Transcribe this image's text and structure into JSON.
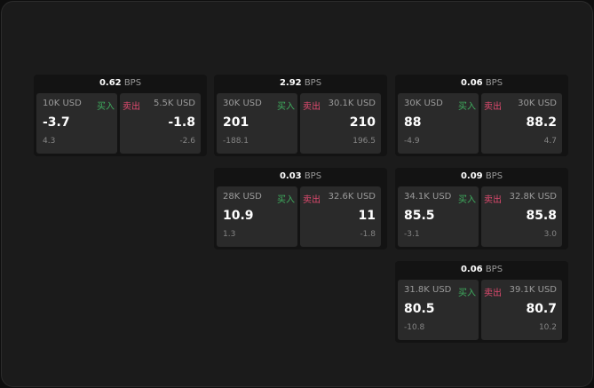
{
  "colors": {
    "buy": "#3fae5f",
    "sell": "#e04a6f"
  },
  "labels": {
    "buy": "买入",
    "sell": "卖出",
    "unit": "BPS"
  },
  "widgets": [
    {
      "bps": "0.62",
      "buy": {
        "size": "10K USD",
        "price": "-3.7",
        "sub": "4.3"
      },
      "sell": {
        "size": "5.5K USD",
        "price": "-1.8",
        "sub": "-2.6"
      }
    },
    {
      "bps": "2.92",
      "buy": {
        "size": "30K USD",
        "price": "201",
        "sub": "-188.1"
      },
      "sell": {
        "size": "30.1K USD",
        "price": "210",
        "sub": "196.5"
      }
    },
    {
      "bps": "0.06",
      "buy": {
        "size": "30K USD",
        "price": "88",
        "sub": "-4.9"
      },
      "sell": {
        "size": "30K USD",
        "price": "88.2",
        "sub": "4.7"
      }
    },
    {
      "bps": "0.03",
      "buy": {
        "size": "28K USD",
        "price": "10.9",
        "sub": "1.3"
      },
      "sell": {
        "size": "32.6K USD",
        "price": "11",
        "sub": "-1.8"
      }
    },
    {
      "bps": "0.09",
      "buy": {
        "size": "34.1K USD",
        "price": "85.5",
        "sub": "-3.1"
      },
      "sell": {
        "size": "32.8K USD",
        "price": "85.8",
        "sub": "3.0"
      }
    },
    {
      "bps": "0.06",
      "buy": {
        "size": "31.8K USD",
        "price": "80.5",
        "sub": "-10.8"
      },
      "sell": {
        "size": "39.1K USD",
        "price": "80.7",
        "sub": "10.2"
      }
    }
  ]
}
